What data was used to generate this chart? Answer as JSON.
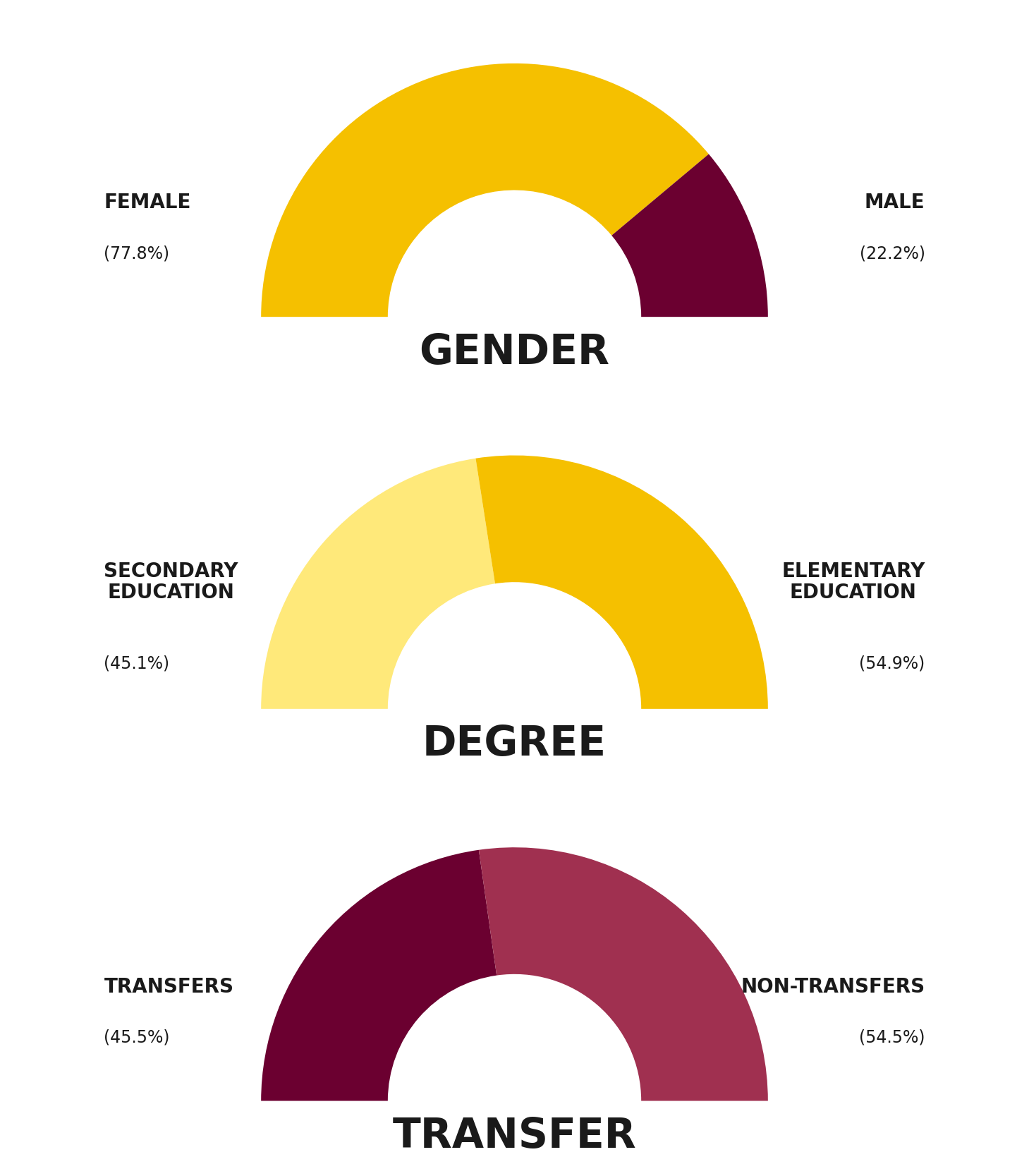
{
  "charts": [
    {
      "title": "GENDER",
      "slices": [
        {
          "label": "FEMALE",
          "pct": "(77.8%)",
          "value": 77.8,
          "color": "#F5C000",
          "side": "left"
        },
        {
          "label": "MALE",
          "pct": "(22.2%)",
          "value": 22.2,
          "color": "#6B0030",
          "side": "right"
        }
      ]
    },
    {
      "title": "DEGREE",
      "slices": [
        {
          "label": "SECONDARY\nEDUCATION",
          "pct": "(45.1%)",
          "value": 45.1,
          "color": "#FFE97A",
          "side": "left"
        },
        {
          "label": "ELEMENTARY\nEDUCATION",
          "pct": "(54.9%)",
          "value": 54.9,
          "color": "#F5C000",
          "side": "right"
        }
      ]
    },
    {
      "title": "TRANSFER",
      "slices": [
        {
          "label": "TRANSFERS",
          "pct": "(45.5%)",
          "value": 45.5,
          "color": "#6B0030",
          "side": "left"
        },
        {
          "label": "NON-TRANSFERS",
          "pct": "(54.5%)",
          "value": 54.5,
          "color": "#A03050",
          "side": "right"
        }
      ]
    }
  ],
  "bg_color": "#FFFFFF",
  "text_color": "#1a1a1a",
  "label_fontsize": 20,
  "pct_fontsize": 17,
  "title_fontsize": 42,
  "outer_r": 1.0,
  "inner_r": 0.5
}
